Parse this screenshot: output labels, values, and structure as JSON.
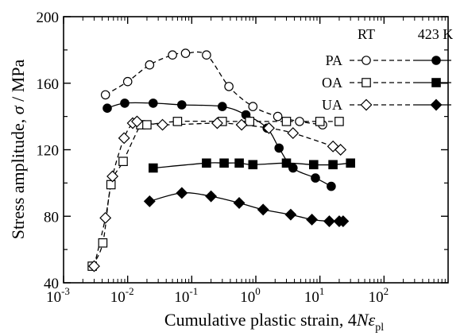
{
  "chart_data": {
    "type": "scatter",
    "x_scale": "log",
    "xlim": [
      0.001,
      1000
    ],
    "ylim": [
      40,
      200
    ],
    "x_ticks": [
      {
        "value": 0.001,
        "base": "10",
        "exp": "-3"
      },
      {
        "value": 0.01,
        "base": "10",
        "exp": "-2"
      },
      {
        "value": 0.1,
        "base": "10",
        "exp": "-1"
      },
      {
        "value": 1,
        "base": "10",
        "exp": "0"
      },
      {
        "value": 10,
        "base": "10",
        "exp": "1"
      },
      {
        "value": 100,
        "base": "10",
        "exp": "2"
      }
    ],
    "y_ticks": [
      {
        "value": 40,
        "label": "40"
      },
      {
        "value": 80,
        "label": "80"
      },
      {
        "value": 120,
        "label": "120"
      },
      {
        "value": 160,
        "label": "160"
      },
      {
        "value": 200,
        "label": "200"
      }
    ],
    "xlabel": {
      "main": "Cumulative plastic strain, 4",
      "n": "N",
      "eps": "ε",
      "sub": "pl"
    },
    "ylabel": {
      "main": "Stress amplitude, ",
      "sigma": "σ",
      "unit": " / MPa"
    },
    "legend": {
      "header_rt": "RT",
      "header_423": "423 K",
      "entries": [
        {
          "label": "PA",
          "shape": "circle"
        },
        {
          "label": "OA",
          "shape": "square"
        },
        {
          "label": "UA",
          "shape": "diamond"
        }
      ]
    },
    "series": [
      {
        "condition": "PA",
        "temperature": "RT",
        "shape": "circle",
        "filled": false,
        "dashed": true,
        "x": [
          0.0045,
          0.01,
          0.022,
          0.05,
          0.08,
          0.17,
          0.38,
          0.9,
          2.2,
          4.8,
          11
        ],
        "y": [
          153,
          161,
          171,
          177,
          178,
          177,
          158,
          146,
          140,
          137,
          135
        ]
      },
      {
        "condition": "PA",
        "temperature": "423 K",
        "shape": "circle",
        "filled": true,
        "dashed": false,
        "x": [
          0.0048,
          0.009,
          0.025,
          0.07,
          0.3,
          0.7,
          1.5,
          2.3,
          3.8,
          8.5,
          15
        ],
        "y": [
          145,
          148,
          148,
          147,
          146,
          141,
          133,
          121,
          109,
          103,
          98
        ]
      },
      {
        "condition": "OA",
        "temperature": "RT",
        "shape": "square",
        "filled": false,
        "dashed": true,
        "x": [
          0.0028,
          0.0041,
          0.0055,
          0.0085,
          0.016,
          0.02,
          0.06,
          0.3,
          0.8,
          3,
          10,
          20
        ],
        "y": [
          50,
          64,
          99,
          113,
          135,
          135,
          137,
          137,
          137,
          137,
          137,
          137
        ]
      },
      {
        "condition": "OA",
        "temperature": "423 K",
        "shape": "square",
        "filled": true,
        "dashed": false,
        "x": [
          0.025,
          0.17,
          0.32,
          0.55,
          0.9,
          3,
          8,
          16,
          30
        ],
        "y": [
          109,
          112,
          112,
          112,
          111,
          112,
          111,
          111,
          112
        ]
      },
      {
        "condition": "UA",
        "temperature": "RT",
        "shape": "diamond",
        "filled": false,
        "dashed": true,
        "x": [
          0.003,
          0.0045,
          0.0058,
          0.0088,
          0.012,
          0.014,
          0.035,
          0.25,
          0.6,
          1.6,
          3.8,
          16,
          21
        ],
        "y": [
          50,
          79,
          104,
          127,
          136,
          137,
          135,
          136,
          135,
          133,
          130,
          122,
          120
        ]
      },
      {
        "condition": "UA",
        "temperature": "423 K",
        "shape": "diamond",
        "filled": true,
        "dashed": false,
        "x": [
          0.022,
          0.07,
          0.2,
          0.55,
          1.3,
          3.5,
          7.5,
          14,
          20,
          23
        ],
        "y": [
          89,
          94,
          92,
          88,
          84,
          81,
          78,
          77,
          77,
          77
        ]
      }
    ]
  }
}
